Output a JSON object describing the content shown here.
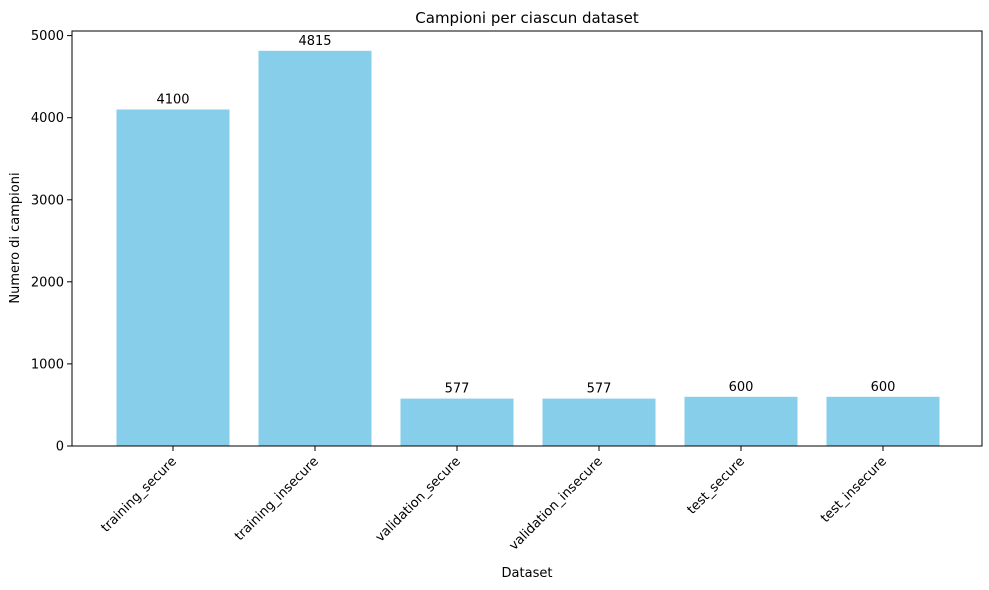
{
  "chart_data": {
    "type": "bar",
    "title": "Campioni per ciascun dataset",
    "xlabel": "Dataset",
    "ylabel": "Numero di campioni",
    "categories": [
      "training_secure",
      "training_insecure",
      "validation_secure",
      "validation_insecure",
      "test_secure",
      "test_insecure"
    ],
    "values": [
      4100,
      4815,
      577,
      577,
      600,
      600
    ],
    "data_labels": [
      "4100",
      "4815",
      "577",
      "577",
      "600",
      "600"
    ],
    "yticks": [
      0,
      1000,
      2000,
      3000,
      4000,
      5000
    ],
    "ylim": [
      0,
      5056
    ],
    "grid": false,
    "legend": "none",
    "bar_color": "#87ceeb",
    "xtick_rotation": 45
  }
}
